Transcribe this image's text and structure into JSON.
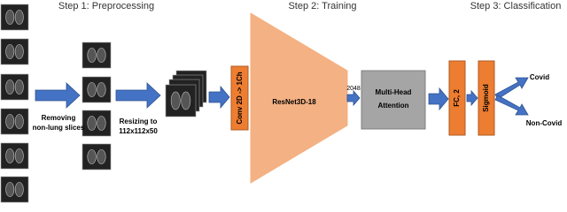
{
  "steps": [
    "Step 1: Preprocessing",
    "Step 2: Training",
    "Step 3: Classification"
  ],
  "preprocessing": {
    "remove_label": [
      "Removing",
      "non-lung slices"
    ],
    "resize_label": [
      "Resizing to",
      "112x112x50"
    ]
  },
  "training": {
    "conv": "Conv 2D -> 1Ch",
    "backbone": "ResNet3D-18",
    "feature_size": "2048",
    "attention": [
      "Multi-Head",
      "Attention"
    ]
  },
  "classification": {
    "fc": "FC, 2",
    "activation": "Sigmoid",
    "outputs": [
      "Covid",
      "Non-Covid"
    ]
  }
}
